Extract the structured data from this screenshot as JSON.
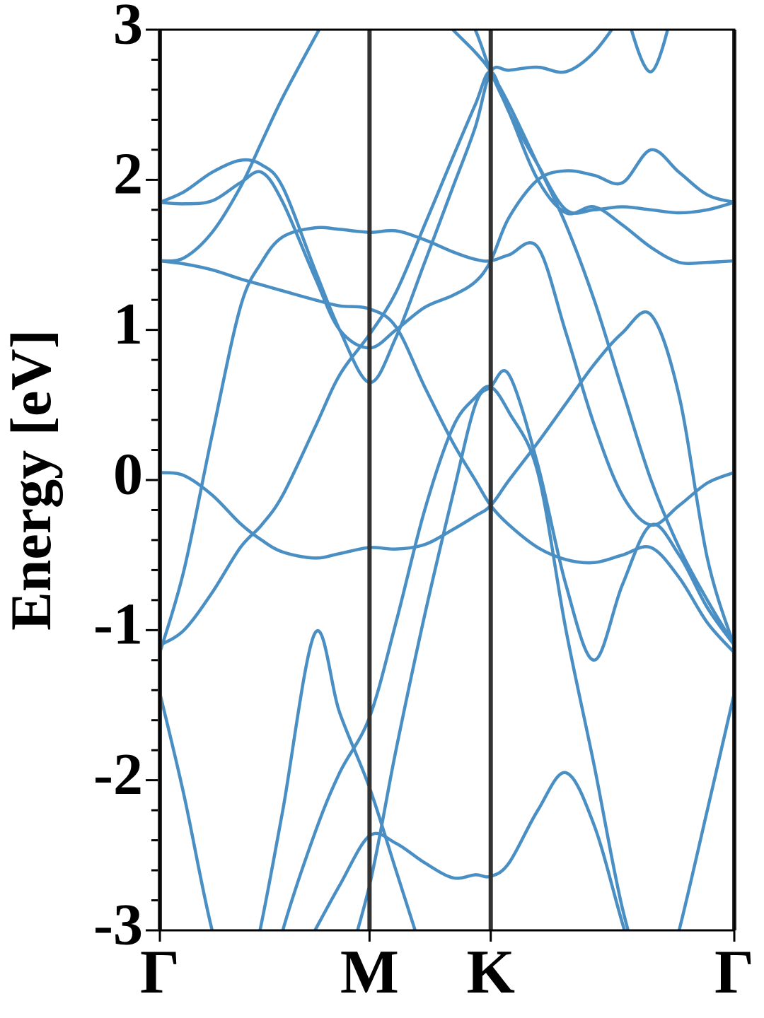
{
  "chart_data": {
    "type": "line",
    "ylabel": "Energy [eV]",
    "color": "#4a8fc4",
    "ylim": [
      -3,
      3
    ],
    "yticks": [
      -3,
      -2,
      -1,
      0,
      1,
      2,
      3
    ],
    "yminorticks": [
      -2.8,
      -2.6,
      -2.4,
      -2.2,
      -1.8,
      -1.6,
      -1.4,
      -1.2,
      -0.8,
      -0.6,
      -0.4,
      -0.2,
      0.2,
      0.4,
      0.6,
      0.8,
      1.2,
      1.4,
      1.6,
      1.8,
      2.2,
      2.4,
      2.6,
      2.8
    ],
    "xlim": [
      0,
      1
    ],
    "xticks": [
      {
        "value": 0,
        "label": "Γ"
      },
      {
        "value": 0.365,
        "label": "M"
      },
      {
        "value": 0.576,
        "label": "K"
      },
      {
        "value": 1,
        "label": "Γ"
      }
    ],
    "xgrid": true,
    "x": [
      0,
      0.042,
      0.091,
      0.14,
      0.177,
      0.214,
      0.27,
      0.313,
      0.365,
      0.411,
      0.461,
      0.51,
      0.549,
      0.576,
      0.608,
      0.658,
      0.707,
      0.756,
      0.805,
      0.855,
      0.904,
      0.953,
      1
    ],
    "series": [
      {
        "values": [
          -1.15,
          -0.6,
          0.3,
          1.15,
          1.45,
          1.62,
          1.68,
          1.67,
          1.65,
          1.66,
          1.6,
          1.52,
          1.47,
          1.46,
          1.5,
          1.55,
          0.98,
          0.37,
          -0.1,
          -0.3,
          -0.17,
          -0.02,
          0.05
        ]
      },
      {
        "values": [
          0.05,
          0.03,
          -0.1,
          -0.29,
          -0.4,
          -0.48,
          -0.52,
          -0.49,
          -0.45,
          -0.46,
          -0.43,
          -0.33,
          -0.24,
          -0.17,
          0,
          0.25,
          0.51,
          0.77,
          0.98,
          1.1,
          0.56,
          -0.52,
          -1.11
        ]
      },
      {
        "values": [
          1.46,
          1.44,
          1.4,
          1.34,
          1.3,
          1.26,
          1.2,
          1.16,
          1.14,
          1.02,
          0.62,
          0.25,
          0,
          -0.17,
          -0.3,
          -0.45,
          -0.53,
          -0.55,
          -0.5,
          -0.45,
          -0.65,
          -0.95,
          -1.15
        ]
      },
      {
        "values": [
          1.46,
          1.48,
          1.65,
          1.95,
          2.25,
          2.55,
          2.95,
          3.25,
          null,
          null,
          null,
          null,
          null,
          null,
          null,
          null,
          null,
          null,
          null,
          null,
          null,
          null,
          null
        ]
      },
      {
        "values": [
          1.85,
          1.84,
          1.86,
          1.98,
          2.05,
          1.85,
          1.35,
          1.0,
          0.88,
          1.0,
          1.15,
          1.23,
          1.32,
          1.46,
          1.75,
          2.0,
          2.06,
          2.03,
          1.98,
          2.2,
          2.05,
          1.9,
          1.85
        ]
      },
      {
        "values": [
          1.85,
          1.92,
          2.05,
          2.13,
          2.1,
          1.95,
          1.4,
          1.0,
          0.65,
          0.95,
          1.45,
          1.95,
          2.35,
          2.72,
          2.73,
          2.75,
          2.72,
          2.85,
          3.1,
          null,
          null,
          null,
          null
        ]
      },
      {
        "values": [
          -1.1,
          -1.0,
          -0.75,
          -0.45,
          -0.3,
          -0.1,
          0.35,
          0.7,
          0.97,
          1.25,
          1.7,
          2.15,
          2.5,
          2.72,
          2.45,
          2.1,
          1.8,
          1.8,
          1.82,
          1.8,
          1.78,
          1.8,
          1.85
        ]
      },
      {
        "values": [
          null,
          null,
          null,
          null,
          null,
          null,
          null,
          null,
          null,
          null,
          null,
          3.3,
          3.0,
          2.72,
          2.45,
          2.0,
          1.78,
          1.82,
          1.7,
          1.55,
          1.45,
          1.45,
          1.46
        ]
      },
      {
        "values": [
          null,
          null,
          null,
          null,
          null,
          null,
          null,
          null,
          null,
          null,
          3.2,
          3.0,
          2.85,
          2.72,
          2.5,
          2.1,
          1.7,
          1.2,
          0.6,
          0.0,
          -0.45,
          -0.8,
          -1.1
        ]
      },
      {
        "values": [
          -1.42,
          -2.1,
          -3.0,
          -3.6,
          null,
          null,
          null,
          null,
          null,
          null,
          null,
          null,
          null,
          null,
          null,
          null,
          null,
          null,
          null,
          -3.7,
          -3.0,
          -2.2,
          -1.42
        ]
      },
      {
        "values": [
          null,
          null,
          null,
          -3.6,
          -2.95,
          -2.2,
          -1.02,
          -1.55,
          -2.05,
          -2.6,
          -3.2,
          null,
          null,
          null,
          null,
          null,
          null,
          null,
          null,
          null,
          null,
          null,
          null
        ]
      },
      {
        "values": [
          null,
          null,
          null,
          null,
          -3.6,
          -3.0,
          -2.35,
          -1.95,
          -1.58,
          -0.95,
          -0.2,
          0.35,
          0.55,
          0.62,
          0.45,
          0.05,
          -1.0,
          -1.9,
          -2.85,
          -3.5,
          null,
          null,
          null
        ]
      },
      {
        "values": [
          null,
          null,
          null,
          null,
          null,
          null,
          -3.0,
          -2.7,
          -2.37,
          -2.42,
          -2.55,
          -2.65,
          -2.63,
          -2.64,
          -2.55,
          -2.2,
          -1.95,
          -2.3,
          -2.95,
          -3.6,
          null,
          null,
          null
        ]
      },
      {
        "values": [
          null,
          null,
          null,
          null,
          null,
          null,
          null,
          -3.4,
          -2.7,
          -1.8,
          -0.9,
          -0.1,
          0.5,
          0.62,
          0.7,
          0.1,
          -0.7,
          -1.2,
          -0.7,
          -0.3,
          -0.5,
          -0.85,
          -1.1
        ]
      },
      {
        "values": [
          null,
          null,
          null,
          null,
          null,
          null,
          null,
          null,
          null,
          null,
          null,
          null,
          null,
          null,
          null,
          null,
          null,
          null,
          3.2,
          2.72,
          3.3,
          null,
          null
        ]
      }
    ]
  }
}
